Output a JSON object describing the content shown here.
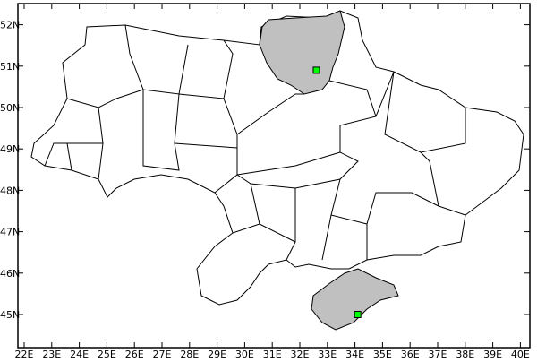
{
  "map": {
    "x_axis": {
      "labels": [
        "22E",
        "23E",
        "24E",
        "25E",
        "26E",
        "27E",
        "28E",
        "29E",
        "30E",
        "31E",
        "32E",
        "33E",
        "34E",
        "35E",
        "36E",
        "37E",
        "38E",
        "39E",
        "40E"
      ],
      "range_deg": [
        22,
        40
      ]
    },
    "y_axis": {
      "labels": [
        "45N",
        "46N",
        "47N",
        "48N",
        "49N",
        "50N",
        "51N",
        "52N"
      ],
      "range_deg": [
        45,
        52
      ]
    },
    "highlighted_regions": [
      "Chernihiv",
      "Crimea"
    ],
    "colors": {
      "highlight_fill": "#c0c0c0",
      "marker_fill": "#00ff00",
      "region_fill": "#ffffff",
      "outline": "#000000"
    },
    "markers": [
      {
        "lon": 32.6,
        "lat": 50.9
      },
      {
        "lon": 34.1,
        "lat": 45.0
      }
    ]
  }
}
